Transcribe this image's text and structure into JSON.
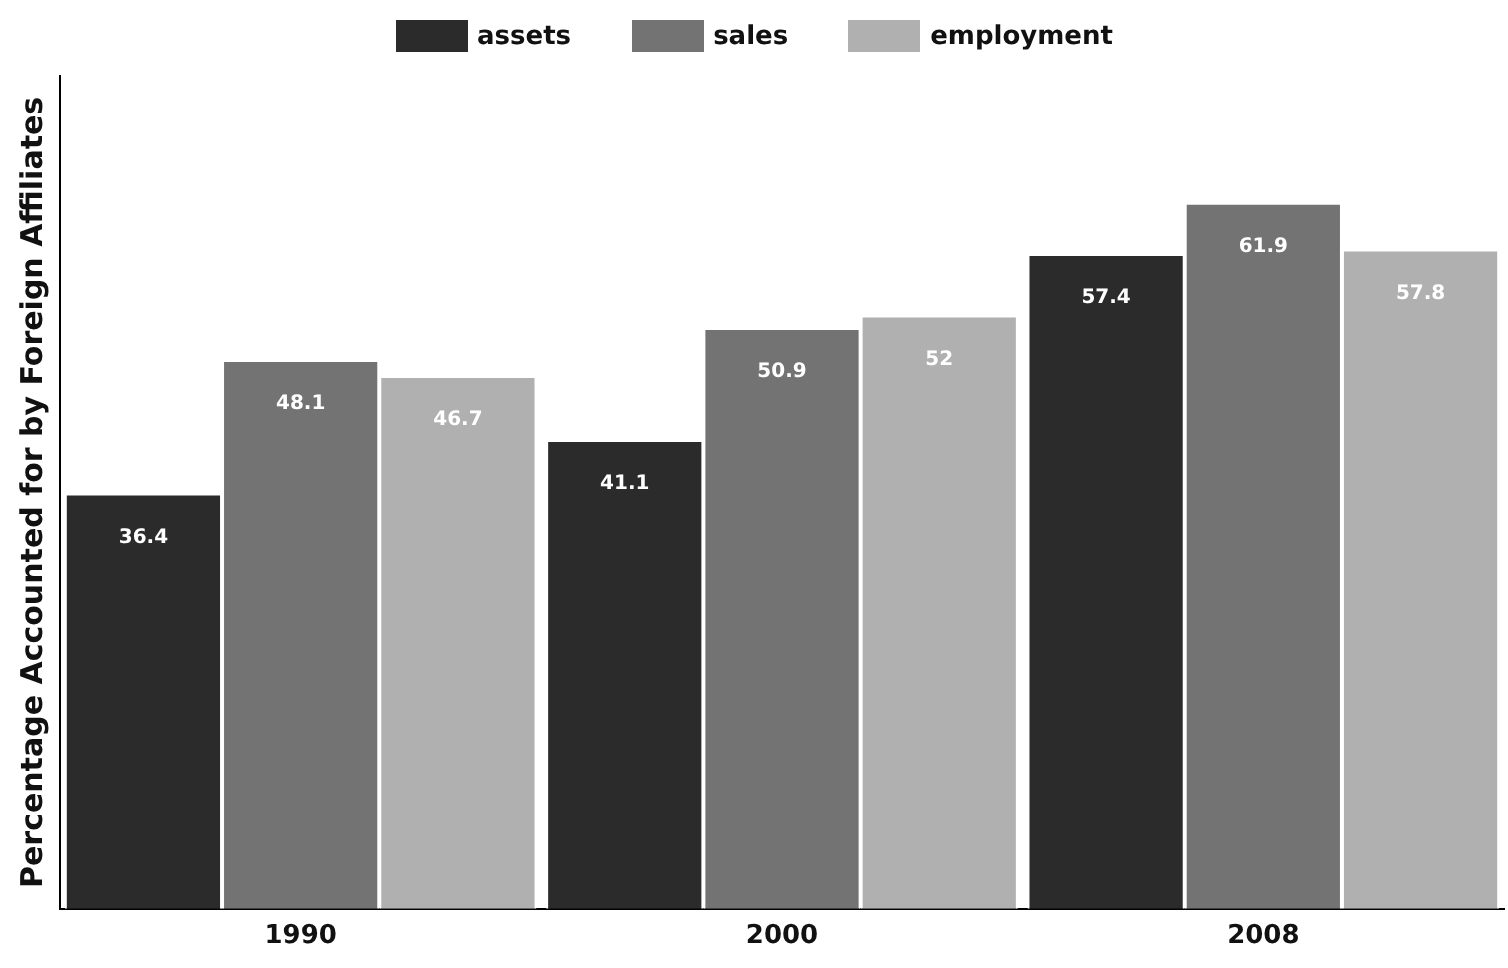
{
  "chart_data": {
    "type": "bar",
    "ylabel": "Percentage Accounted for by Foreign Affiliates",
    "categories": [
      "1990",
      "2000",
      "2008"
    ],
    "series": [
      {
        "name": "assets",
        "color": "#2b2b2b",
        "values": [
          36.4,
          41.1,
          57.4
        ]
      },
      {
        "name": "sales",
        "color": "#737373",
        "values": [
          48.1,
          50.9,
          61.9
        ]
      },
      {
        "name": "employment",
        "color": "#b0b0b0",
        "values": [
          46.7,
          52,
          57.8
        ]
      }
    ],
    "ylim": [
      0,
      73
    ],
    "data_labels": true,
    "legend": "top",
    "grid": false,
    "tick_labels": "x"
  }
}
